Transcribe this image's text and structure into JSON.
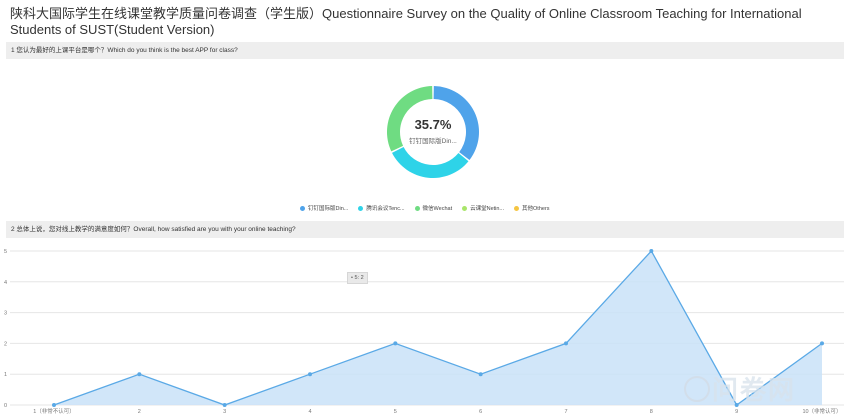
{
  "page": {
    "title": "陕科大国际学生在线课堂教学质量问卷调查（学生版）Questionnaire Survey on the Quality of Online Classroom Teaching for International Students of SUST(Student Version)"
  },
  "q1": {
    "title": "1 您认为最好的上课平台是哪个？Which do you think is the best APP for class?",
    "center_pct": "35.7%",
    "center_label": "钉钉国际版Din..."
  },
  "q2": {
    "title": "2 总体上说，您对线上教学的满意度如何？Overall, how satisfied are you with your online teaching?",
    "tooltip": "• 5: 2"
  },
  "watermark": {
    "text": "问卷网"
  },
  "chart_data": [
    {
      "type": "pie",
      "subtype": "donut",
      "legend_position": "bottom",
      "categories": [
        "钉钉国际版Din...",
        "腾讯会议Tenc...",
        "微信Wechat",
        "云课堂Netin...",
        "其他Others"
      ],
      "values": [
        35.7,
        32.1,
        32.2,
        0,
        0
      ],
      "colors": [
        "#4fa3ea",
        "#2ed3e8",
        "#6fdc82",
        "#a9e56a",
        "#f5c542"
      ]
    },
    {
      "type": "area",
      "x": [
        "1（非常不认可）",
        "2",
        "3",
        "4",
        "5",
        "6",
        "7",
        "8",
        "9",
        "10（非常认可）"
      ],
      "values": [
        0,
        1,
        0,
        1,
        2,
        1,
        2,
        5,
        0,
        2
      ],
      "ylim": [
        0,
        5
      ],
      "yticks": [
        "0",
        "1",
        "2",
        "3",
        "4",
        "5"
      ],
      "grid": true,
      "line_color": "#5aa9e6",
      "fill_color": "#c9e2f8"
    }
  ]
}
